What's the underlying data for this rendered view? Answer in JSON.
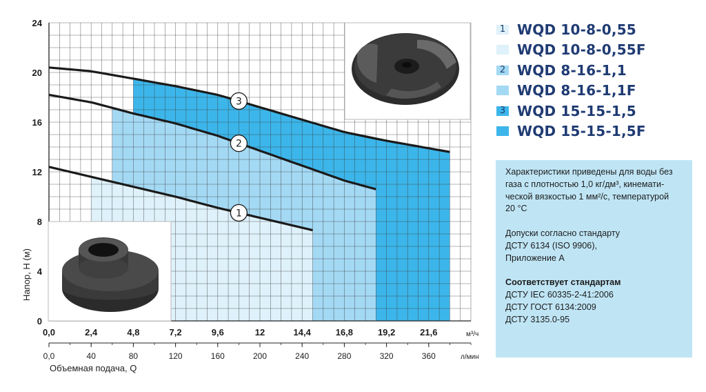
{
  "chart_data": {
    "type": "line",
    "title": "",
    "ylabel": "Напор, Н (м)",
    "xlabel": "Объемная подача, Q",
    "x_unit_top": "м³/ч",
    "x_unit_bottom": "л/мин",
    "ylim": [
      0,
      24
    ],
    "xlim": [
      0,
      24
    ],
    "y_ticks": [
      "0",
      "4",
      "8",
      "12",
      "16",
      "20",
      "24"
    ],
    "x_ticks_top": [
      "0,0",
      "2,4",
      "4,8",
      "7,2",
      "9,6",
      "12",
      "14,4",
      "16,8",
      "19,2",
      "21,6"
    ],
    "x_ticks_bottom": [
      "0,0",
      "40",
      "80",
      "120",
      "160",
      "200",
      "240",
      "280",
      "320",
      "360"
    ],
    "grid": true,
    "series": [
      {
        "name": "1",
        "x": [
          0,
          2.4,
          4.8,
          7.2,
          9.6,
          12,
          14.4,
          15.0
        ],
        "y": [
          12.4,
          11.6,
          10.8,
          10.0,
          9.1,
          8.3,
          7.5,
          7.3
        ],
        "work_range": [
          2.4,
          15.0
        ]
      },
      {
        "name": "2",
        "x": [
          0,
          2.4,
          4.8,
          7.2,
          9.6,
          12,
          14.4,
          16.8,
          18.6
        ],
        "y": [
          18.2,
          17.6,
          16.7,
          15.9,
          14.9,
          13.7,
          12.5,
          11.3,
          10.6
        ],
        "work_range": [
          3.6,
          18.6
        ]
      },
      {
        "name": "3",
        "x": [
          0,
          2.4,
          4.8,
          7.2,
          9.6,
          12,
          14.4,
          16.8,
          19.2,
          21.6,
          22.8
        ],
        "y": [
          20.4,
          20.1,
          19.5,
          18.9,
          18.2,
          17.2,
          16.2,
          15.2,
          14.5,
          13.9,
          13.6
        ],
        "work_range": [
          4.8,
          22.8
        ]
      }
    ]
  },
  "legend": [
    {
      "marker": "1",
      "label": "WQD 10-8-0,55",
      "color": "#dff1fa"
    },
    {
      "marker": "",
      "label": "WQD 10-8-0,55F",
      "color": "#dff1fa"
    },
    {
      "marker": "2",
      "label": "WQD 8-16-1,1",
      "color": "#a4d9f4"
    },
    {
      "marker": "",
      "label": "WQD 8-16-1,1F",
      "color": "#a4d9f4"
    },
    {
      "marker": "3",
      "label": "WQD 15-15-1,5",
      "color": "#3cb6ea"
    },
    {
      "marker": "",
      "label": "WQD 15-15-1,5F",
      "color": "#3cb6ea"
    }
  ],
  "notes": {
    "para1_l1": "Характеристики приведены для воды без",
    "para1_l2": "газа с плотностью 1,0 кг/дм³, кинемати-",
    "para1_l3": "ческой вязкостью 1 мм²/с, температурой",
    "para1_l4": "20 °С",
    "para2_l1": "Допуски согласно стандарту",
    "para2_l2": "ДСТУ 6134 (ISO 9906),",
    "para2_l3": "Приложение А",
    "para3_title": "Соответствует стандартам",
    "para3_l1": "ДСТУ IEC 60335-2-41:2006",
    "para3_l2": "ДСТУ ГОСТ 6134:2009",
    "para3_l3": "ДСТУ 3135.0-95"
  },
  "colors": {
    "zone1": "#dff1fa",
    "zone2": "#a4d9f4",
    "zone3": "#3cb6ea",
    "grid": "#3a3a3a",
    "curve": "#1a1a1a",
    "legend_text": "#1f3b73",
    "notes_bg": "#bfe5f5"
  },
  "photos": {
    "top_right": "impeller-open-icon",
    "bottom_left": "impeller-closed-icon"
  }
}
